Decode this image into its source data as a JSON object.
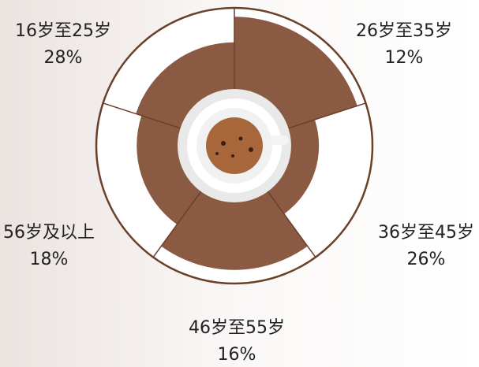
{
  "chart_data": {
    "type": "rose",
    "categories": [
      "16岁至25岁",
      "26岁至35岁",
      "36岁至45岁",
      "46岁至55岁",
      "56岁及以上"
    ],
    "values": [
      28,
      12,
      26,
      16,
      18
    ],
    "value_labels": [
      "28%",
      "12%",
      "26%",
      "16%",
      "18%"
    ],
    "color": "#8b5a43"
  }
}
